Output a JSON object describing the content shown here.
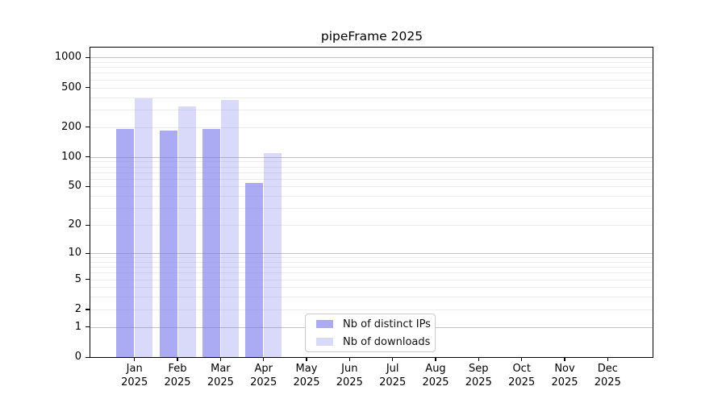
{
  "figure": {
    "title": "pipeFrame 2025"
  },
  "chart_data": {
    "type": "bar",
    "title": "pipeFrame 2025",
    "categories": [
      "Jan 2025",
      "Feb 2025",
      "Mar 2025",
      "Apr 2025",
      "May 2025",
      "Jun 2025",
      "Jul 2025",
      "Aug 2025",
      "Sep 2025",
      "Oct 2025",
      "Nov 2025",
      "Dec 2025"
    ],
    "series": [
      {
        "name": "Nb of distinct IPs",
        "color": "#7777ee",
        "alpha": 0.62,
        "values": [
          192,
          183,
          190,
          54,
          0,
          0,
          0,
          0,
          0,
          0,
          0,
          0
        ]
      },
      {
        "name": "Nb of downloads",
        "color": "#7777ee",
        "alpha": 0.28,
        "values": [
          390,
          326,
          375,
          110,
          0,
          0,
          0,
          0,
          0,
          0,
          0,
          0
        ]
      }
    ],
    "xlabel": "",
    "ylabel": "",
    "yscale": "log1p",
    "ylim": [
      0,
      1256
    ],
    "yticks": [
      1000,
      500,
      200,
      100,
      50,
      20,
      10,
      5,
      2,
      1,
      0
    ],
    "minor_gridlines": [
      2,
      3,
      4,
      5,
      6,
      7,
      8,
      9,
      20,
      30,
      40,
      50,
      60,
      70,
      80,
      90,
      200,
      300,
      400,
      500,
      600,
      700,
      800,
      900
    ],
    "major_gridlines": [
      1,
      10,
      100,
      1000
    ],
    "grid": true,
    "legend_position": "lower center-left inside plot",
    "colors": {
      "bar_distinct_ips_blended": "#aaaaf5",
      "bar_downloads_blended": "#d9d9fa",
      "grid_major": "#c3c3c3",
      "grid_minor": "#ececec",
      "axes": "#000000"
    }
  }
}
